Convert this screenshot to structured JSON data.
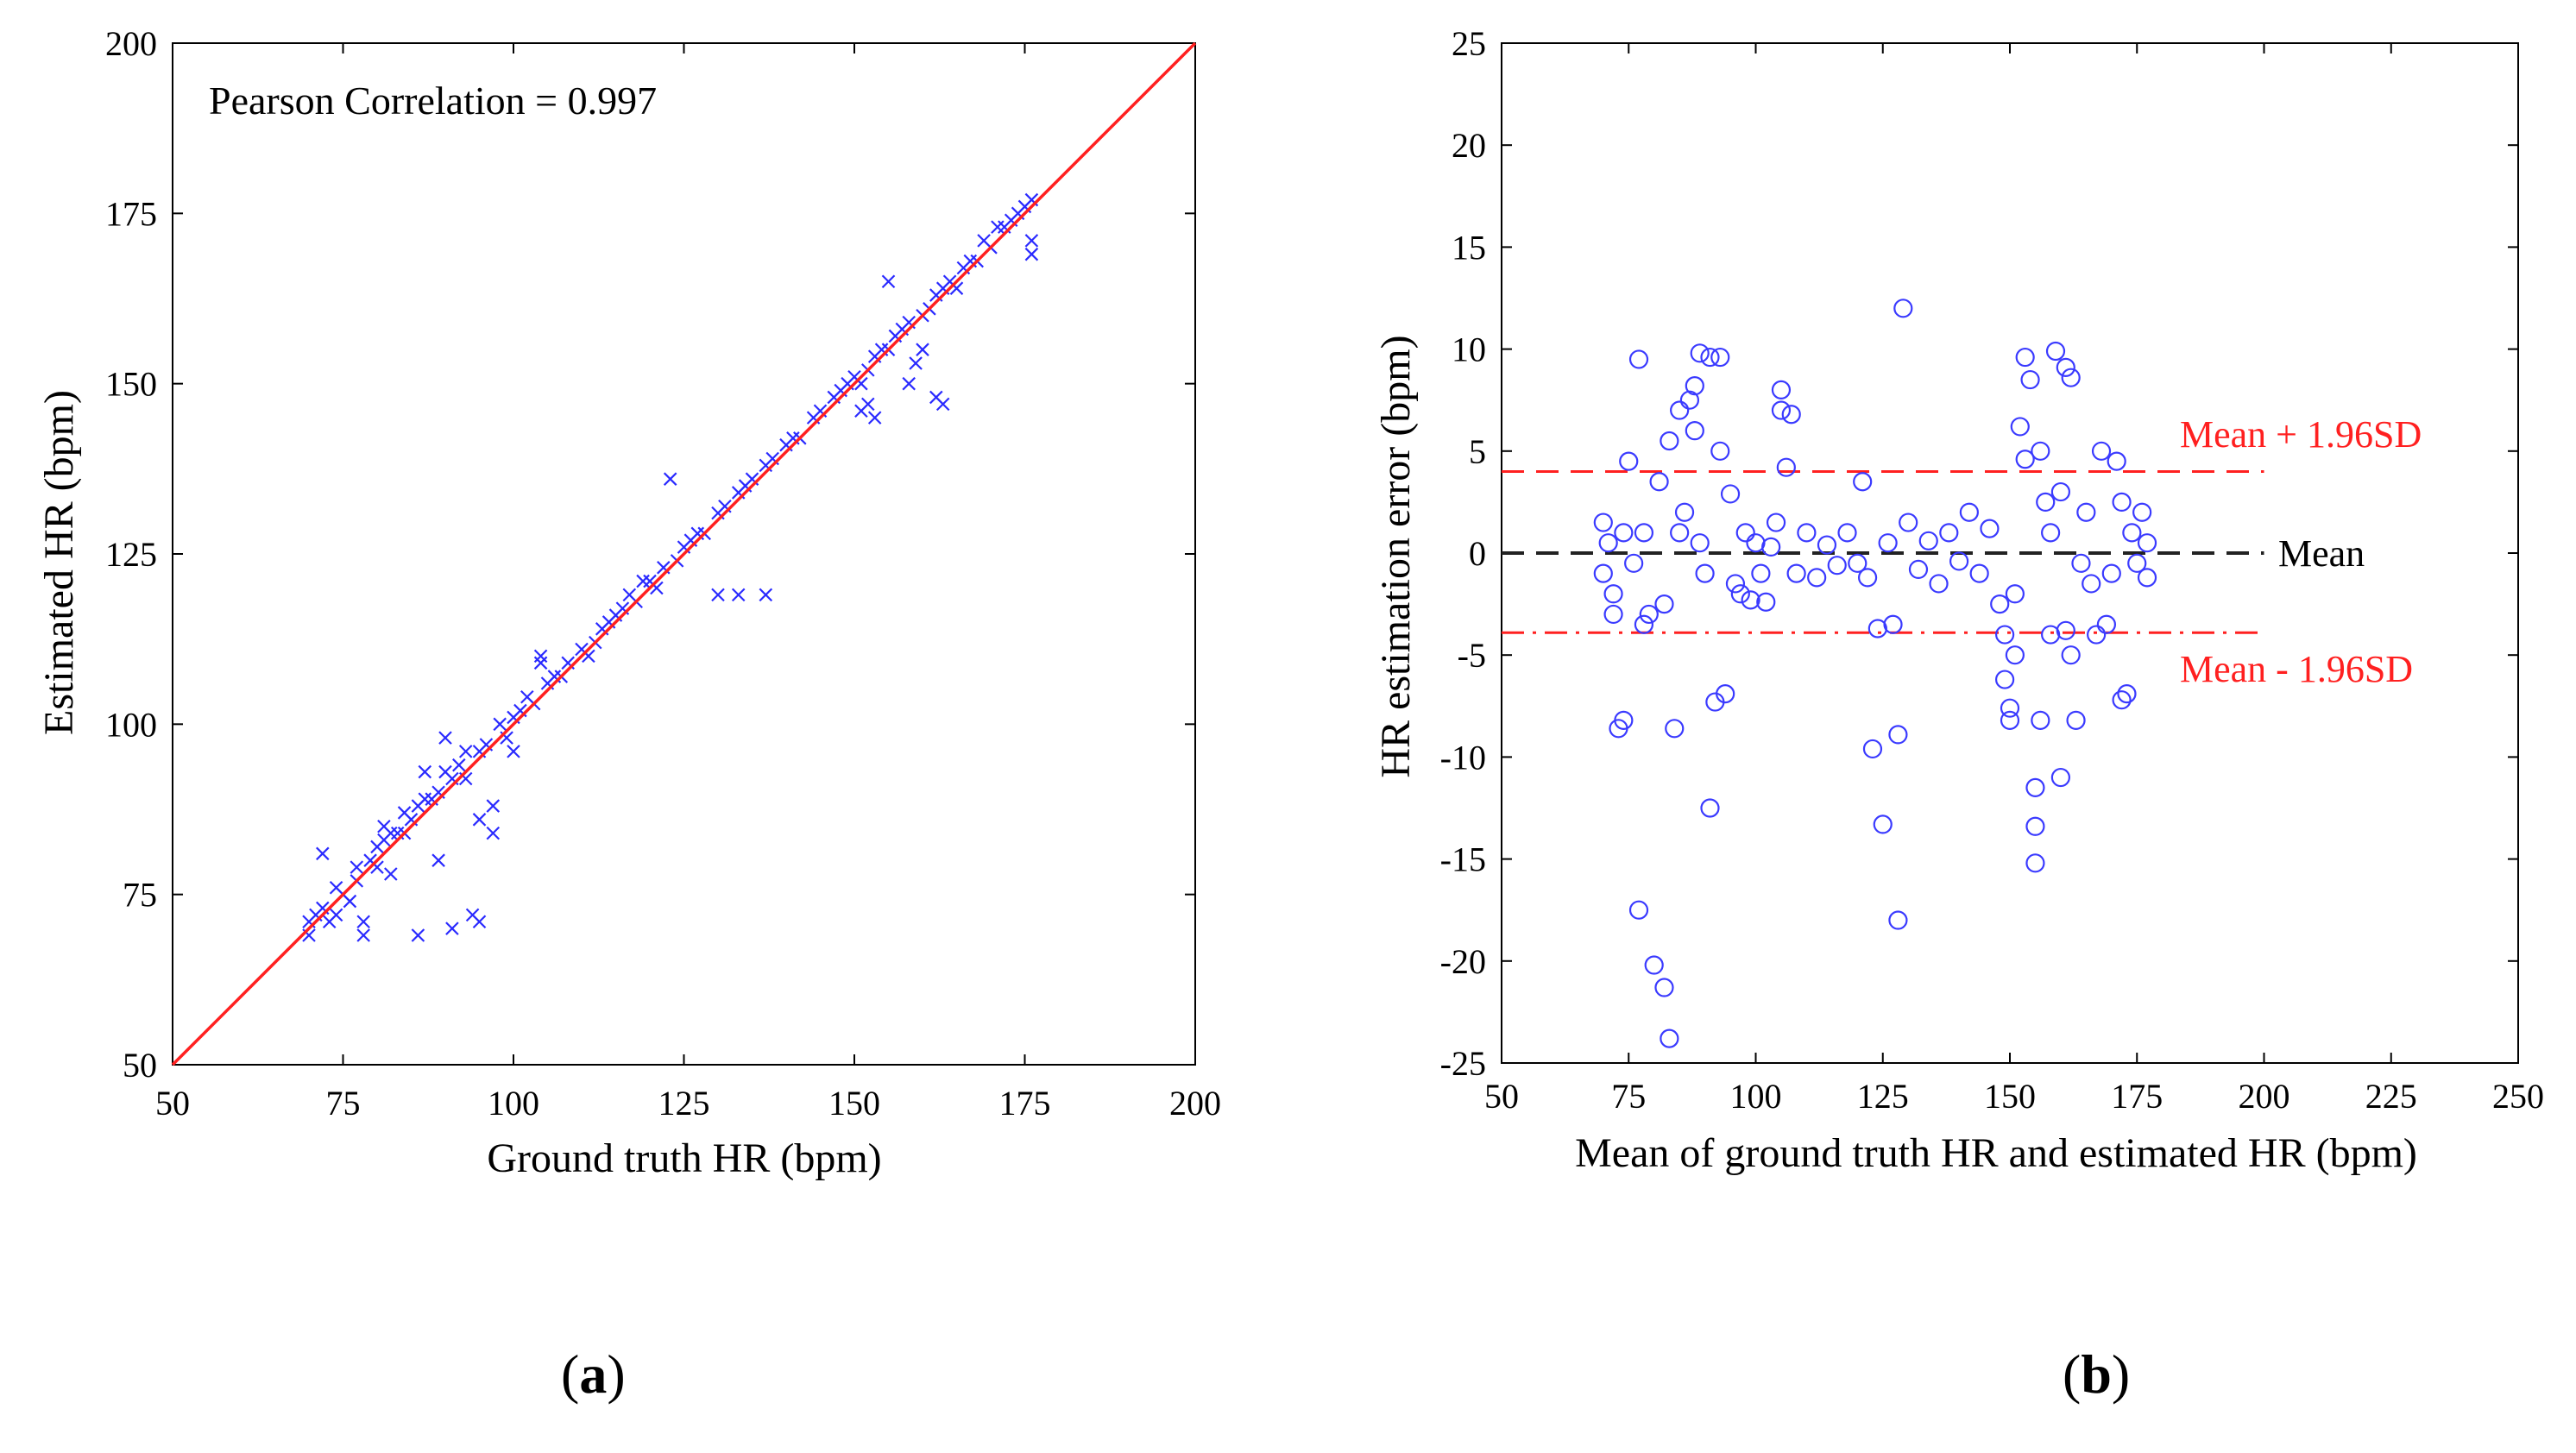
{
  "chart_data": [
    {
      "type": "scatter",
      "panel": "(a)",
      "title": "",
      "xlabel": "Ground truth HR (bpm)",
      "ylabel": "Estimated HR (bpm)",
      "xlim": [
        50,
        200
      ],
      "ylim": [
        50,
        200
      ],
      "xticks": [
        50,
        75,
        100,
        125,
        150,
        175,
        200
      ],
      "yticks": [
        50,
        75,
        100,
        125,
        150,
        175,
        200
      ],
      "grid": false,
      "marker": "x",
      "marker_color": "#2a2aff",
      "annotation": "Pearson Correlation = 0.997",
      "reference_line": {
        "name": "identity y = x",
        "color": "#ff2020",
        "from": [
          50,
          50
        ],
        "to": [
          200,
          200
        ]
      },
      "points": [
        [
          70,
          71
        ],
        [
          70,
          69
        ],
        [
          71,
          72
        ],
        [
          72,
          73
        ],
        [
          72,
          81
        ],
        [
          73,
          71
        ],
        [
          74,
          72
        ],
        [
          74,
          76
        ],
        [
          75,
          75
        ],
        [
          76,
          74
        ],
        [
          77,
          77
        ],
        [
          77,
          79
        ],
        [
          78,
          71
        ],
        [
          78,
          69
        ],
        [
          79,
          80
        ],
        [
          80,
          79
        ],
        [
          80,
          82
        ],
        [
          81,
          83
        ],
        [
          81,
          85
        ],
        [
          82,
          78
        ],
        [
          82,
          84
        ],
        [
          83,
          84
        ],
        [
          84,
          87
        ],
        [
          84,
          84
        ],
        [
          85,
          86
        ],
        [
          86,
          88
        ],
        [
          86,
          69
        ],
        [
          87,
          89
        ],
        [
          87,
          93
        ],
        [
          88,
          89
        ],
        [
          89,
          90
        ],
        [
          89,
          80
        ],
        [
          90,
          98
        ],
        [
          90,
          93
        ],
        [
          91,
          92
        ],
        [
          91,
          70
        ],
        [
          92,
          94
        ],
        [
          93,
          92
        ],
        [
          93,
          96
        ],
        [
          94,
          72
        ],
        [
          95,
          71
        ],
        [
          95,
          96
        ],
        [
          95,
          86
        ],
        [
          96,
          97
        ],
        [
          97,
          88
        ],
        [
          97,
          84
        ],
        [
          98,
          100
        ],
        [
          99,
          98
        ],
        [
          100,
          101
        ],
        [
          100,
          96
        ],
        [
          101,
          102
        ],
        [
          102,
          104
        ],
        [
          103,
          103
        ],
        [
          104,
          109
        ],
        [
          104,
          110
        ],
        [
          105,
          106
        ],
        [
          106,
          107
        ],
        [
          107,
          107
        ],
        [
          108,
          109
        ],
        [
          110,
          111
        ],
        [
          111,
          110
        ],
        [
          112,
          112
        ],
        [
          113,
          114
        ],
        [
          114,
          115
        ],
        [
          115,
          116
        ],
        [
          116,
          117
        ],
        [
          117,
          119
        ],
        [
          118,
          118
        ],
        [
          119,
          121
        ],
        [
          120,
          121
        ],
        [
          121,
          120
        ],
        [
          122,
          123
        ],
        [
          123,
          136
        ],
        [
          124,
          124
        ],
        [
          125,
          126
        ],
        [
          126,
          127
        ],
        [
          127,
          128
        ],
        [
          128,
          128
        ],
        [
          130,
          119
        ],
        [
          130,
          131
        ],
        [
          131,
          132
        ],
        [
          133,
          119
        ],
        [
          133,
          134
        ],
        [
          134,
          135
        ],
        [
          135,
          136
        ],
        [
          137,
          119
        ],
        [
          137,
          138
        ],
        [
          138,
          139
        ],
        [
          140,
          141
        ],
        [
          141,
          142
        ],
        [
          142,
          142
        ],
        [
          144,
          145
        ],
        [
          145,
          146
        ],
        [
          147,
          148
        ],
        [
          148,
          149
        ],
        [
          149,
          150
        ],
        [
          150,
          151
        ],
        [
          151,
          146
        ],
        [
          151,
          150
        ],
        [
          152,
          152
        ],
        [
          152,
          147
        ],
        [
          153,
          145
        ],
        [
          153,
          154
        ],
        [
          154,
          155
        ],
        [
          155,
          155
        ],
        [
          155,
          165
        ],
        [
          156,
          157
        ],
        [
          157,
          158
        ],
        [
          158,
          159
        ],
        [
          158,
          150
        ],
        [
          159,
          153
        ],
        [
          160,
          160
        ],
        [
          160,
          155
        ],
        [
          161,
          161
        ],
        [
          162,
          148
        ],
        [
          162,
          163
        ],
        [
          163,
          147
        ],
        [
          163,
          164
        ],
        [
          164,
          165
        ],
        [
          165,
          164
        ],
        [
          166,
          167
        ],
        [
          167,
          168
        ],
        [
          168,
          168
        ],
        [
          169,
          171
        ],
        [
          170,
          170
        ],
        [
          171,
          173
        ],
        [
          172,
          173
        ],
        [
          173,
          174
        ],
        [
          174,
          175
        ],
        [
          175,
          176
        ],
        [
          176,
          177
        ],
        [
          176,
          169
        ],
        [
          176,
          171
        ]
      ]
    },
    {
      "type": "scatter",
      "panel": "(b)",
      "title": "",
      "xlabel": "Mean of ground truth HR and estimated HR (bpm)",
      "ylabel": "HR estimation error (bpm)",
      "xlim": [
        50,
        250
      ],
      "ylim": [
        -25,
        25
      ],
      "xticks": [
        50,
        75,
        100,
        125,
        150,
        175,
        200,
        225,
        250
      ],
      "yticks": [
        -25,
        -20,
        -15,
        -10,
        -5,
        0,
        5,
        10,
        15,
        20,
        25
      ],
      "grid": false,
      "marker": "o",
      "marker_color": "#3a3aff",
      "reference_lines": [
        {
          "name": "Mean + 1.96SD",
          "label": "Mean + 1.96SD",
          "y": 4.0,
          "x_range": [
            50,
            200
          ],
          "style": "dashed",
          "color": "#ff2020"
        },
        {
          "name": "Mean",
          "label": "Mean",
          "y": 0.0,
          "x_range": [
            50,
            200
          ],
          "style": "dashed",
          "color": "#222222"
        },
        {
          "name": "Mean - 1.96SD",
          "label": "Mean - 1.96SD",
          "y": -3.9,
          "x_range": [
            50,
            200
          ],
          "style": "dashdot",
          "color": "#ff2020"
        }
      ],
      "points": [
        [
          70,
          1.5
        ],
        [
          70,
          -1.0
        ],
        [
          71,
          0.5
        ],
        [
          72,
          -2.0
        ],
        [
          72,
          -3.0
        ],
        [
          73,
          -8.6
        ],
        [
          74,
          -8.2
        ],
        [
          74,
          1.0
        ],
        [
          75,
          4.5
        ],
        [
          76,
          -0.5
        ],
        [
          77,
          9.5
        ],
        [
          77,
          -17.5
        ],
        [
          78,
          1.0
        ],
        [
          78,
          -3.5
        ],
        [
          79,
          -3.0
        ],
        [
          80,
          -20.2
        ],
        [
          81,
          3.5
        ],
        [
          82,
          -2.5
        ],
        [
          82,
          -21.3
        ],
        [
          83,
          5.5
        ],
        [
          83,
          -23.8
        ],
        [
          84,
          -8.6
        ],
        [
          85,
          1.0
        ],
        [
          85,
          7.0
        ],
        [
          86,
          2.0
        ],
        [
          87,
          7.5
        ],
        [
          88,
          6.0
        ],
        [
          88,
          8.2
        ],
        [
          89,
          9.8
        ],
        [
          89,
          0.5
        ],
        [
          90,
          -1.0
        ],
        [
          91,
          -12.5
        ],
        [
          91,
          9.6
        ],
        [
          92,
          -7.3
        ],
        [
          93,
          5.0
        ],
        [
          93,
          9.6
        ],
        [
          94,
          -6.9
        ],
        [
          95,
          2.9
        ],
        [
          96,
          -1.5
        ],
        [
          97,
          -2.0
        ],
        [
          98,
          1.0
        ],
        [
          99,
          -2.3
        ],
        [
          100,
          0.5
        ],
        [
          101,
          -1.0
        ],
        [
          102,
          -2.4
        ],
        [
          103,
          0.3
        ],
        [
          104,
          1.5
        ],
        [
          105,
          7.0
        ],
        [
          105,
          8.0
        ],
        [
          106,
          4.2
        ],
        [
          107,
          6.8
        ],
        [
          108,
          -1.0
        ],
        [
          110,
          1.0
        ],
        [
          112,
          -1.2
        ],
        [
          114,
          0.4
        ],
        [
          116,
          -0.6
        ],
        [
          118,
          1.0
        ],
        [
          120,
          -0.5
        ],
        [
          121,
          3.5
        ],
        [
          122,
          -1.2
        ],
        [
          123,
          -9.6
        ],
        [
          124,
          -3.7
        ],
        [
          125,
          -13.3
        ],
        [
          126,
          0.5
        ],
        [
          127,
          -3.5
        ],
        [
          128,
          -18.0
        ],
        [
          128,
          -8.9
        ],
        [
          129,
          12.0
        ],
        [
          130,
          1.5
        ],
        [
          132,
          -0.8
        ],
        [
          134,
          0.6
        ],
        [
          136,
          -1.5
        ],
        [
          138,
          1.0
        ],
        [
          140,
          -0.4
        ],
        [
          142,
          2.0
        ],
        [
          144,
          -1.0
        ],
        [
          146,
          1.2
        ],
        [
          148,
          -2.5
        ],
        [
          149,
          -4.0
        ],
        [
          149,
          -6.2
        ],
        [
          150,
          -7.6
        ],
        [
          150,
          -8.2
        ],
        [
          151,
          -5.0
        ],
        [
          151,
          -2.0
        ],
        [
          152,
          6.2
        ],
        [
          153,
          4.6
        ],
        [
          153,
          9.6
        ],
        [
          154,
          8.5
        ],
        [
          155,
          -13.4
        ],
        [
          155,
          -15.2
        ],
        [
          155,
          -11.5
        ],
        [
          156,
          -8.2
        ],
        [
          156,
          5.0
        ],
        [
          157,
          2.5
        ],
        [
          158,
          -4.0
        ],
        [
          158,
          1.0
        ],
        [
          159,
          9.9
        ],
        [
          160,
          -11.0
        ],
        [
          160,
          3.0
        ],
        [
          161,
          9.1
        ],
        [
          161,
          -3.8
        ],
        [
          162,
          8.6
        ],
        [
          162,
          -5.0
        ],
        [
          163,
          -8.2
        ],
        [
          164,
          -0.5
        ],
        [
          165,
          2.0
        ],
        [
          166,
          -1.5
        ],
        [
          167,
          -4.0
        ],
        [
          168,
          5.0
        ],
        [
          169,
          -3.5
        ],
        [
          170,
          -1.0
        ],
        [
          171,
          4.5
        ],
        [
          172,
          2.5
        ],
        [
          172,
          -7.2
        ],
        [
          173,
          -6.9
        ],
        [
          174,
          1.0
        ],
        [
          175,
          -0.5
        ],
        [
          176,
          2.0
        ],
        [
          177,
          0.5
        ],
        [
          177,
          -1.2
        ]
      ]
    }
  ],
  "labels": {
    "a": "a",
    "b": "b"
  }
}
